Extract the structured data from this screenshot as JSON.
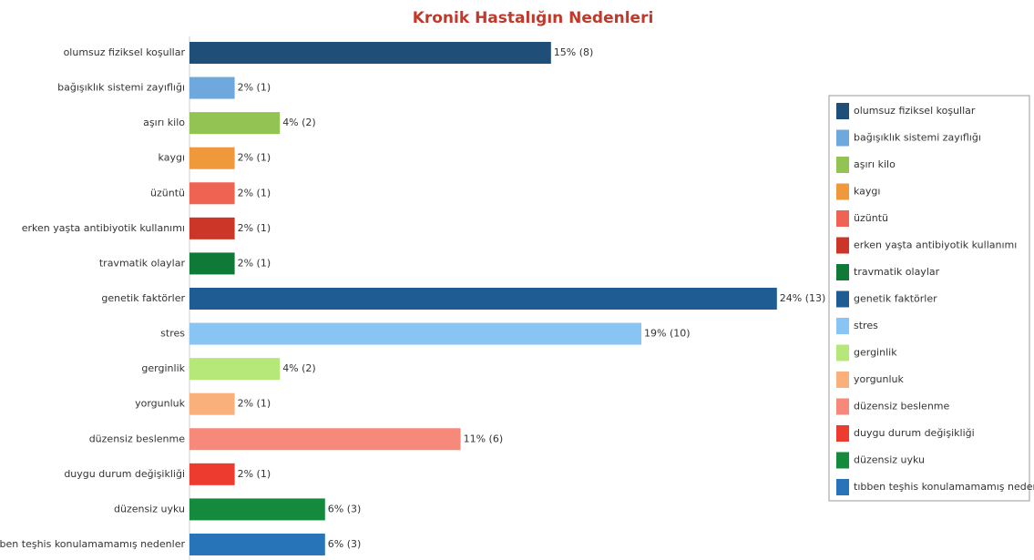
{
  "chart_data": {
    "type": "bar",
    "orientation": "horizontal",
    "title": "Kronik Hastalığın Nedenleri",
    "categories": [
      "olumsuz fiziksel koşullar",
      "bağışıklık sistemi zayıflığı",
      "aşırı kilo",
      "kaygı",
      "üzüntü",
      "erken yaşta antibiyotik kullanımı",
      "travmatik olaylar",
      "genetik faktörler",
      "stres",
      "gerginlik",
      "yorgunluk",
      "düzensiz beslenme",
      "duygu durum değişikliği",
      "düzensiz uyku",
      "tıbben teşhis konulamamamış nedenler"
    ],
    "values": [
      8,
      1,
      2,
      1,
      1,
      1,
      1,
      13,
      10,
      2,
      1,
      6,
      1,
      3,
      3
    ],
    "value_labels": [
      "15% (8)",
      "2% (1)",
      "4% (2)",
      "2% (1)",
      "2% (1)",
      "2% (1)",
      "2% (1)",
      "24% (13)",
      "19% (10)",
      "4% (2)",
      "2% (1)",
      "11% (6)",
      "2% (1)",
      "6% (3)",
      "6% (3)"
    ],
    "colors": [
      "#1f4e79",
      "#6fa8dc",
      "#92c353",
      "#f0993c",
      "#ee6352",
      "#cc3629",
      "#0f7a37",
      "#1f5c94",
      "#88c5f5",
      "#b6e879",
      "#f9b07a",
      "#f7897a",
      "#ee3b30",
      "#138a3c",
      "#2774b8"
    ],
    "legend": "right"
  }
}
